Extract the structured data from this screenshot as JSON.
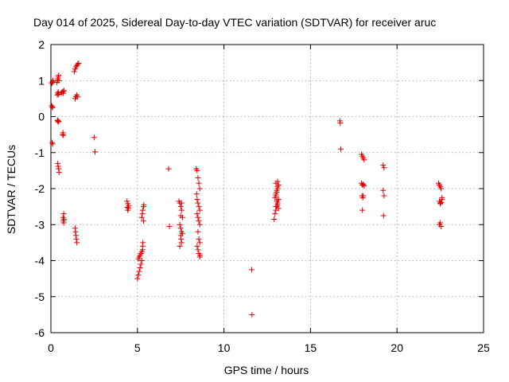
{
  "chart_data": {
    "type": "scatter",
    "title": "Day 014 of 2025, Sidereal Day-to-day VTEC variation (SDTVAR) for receiver aruc",
    "xlabel": "GPS time / hours",
    "ylabel": "SDTVAR / TECUs",
    "xlim": [
      0,
      25
    ],
    "ylim": [
      -6,
      2
    ],
    "xticks": [
      "0",
      "5",
      "10",
      "15",
      "20",
      "25"
    ],
    "yticks": [
      "-6",
      "-5",
      "-4",
      "-3",
      "-2",
      "-1",
      "0",
      "1",
      "2"
    ],
    "grid": true,
    "marker": "+",
    "color": "#e00000",
    "series": [
      {
        "name": "SDTVAR",
        "x": [
          0.05,
          0.08,
          0.1,
          0.12,
          0.05,
          0.08,
          0.1,
          0.07,
          0.1,
          0.35,
          0.38,
          0.4,
          0.42,
          0.45,
          0.47,
          0.37,
          0.4,
          0.43,
          0.45,
          0.38,
          0.4,
          0.42,
          0.45,
          0.4,
          0.42,
          0.45,
          0.47,
          0.6,
          0.65,
          0.7,
          0.75,
          0.72,
          0.68,
          0.7,
          0.72,
          0.74,
          0.7,
          0.72,
          0.74,
          0.76,
          1.35,
          1.4,
          1.45,
          1.5,
          1.55,
          1.6,
          1.4,
          1.45,
          1.5,
          1.55,
          1.4,
          1.42,
          1.45,
          1.47,
          1.5,
          2.5,
          2.55,
          4.4,
          4.45,
          4.5,
          4.42,
          4.48,
          4.44,
          5.0,
          5.05,
          5.1,
          5.15,
          5.2,
          5.25,
          5.05,
          5.1,
          5.15,
          5.2,
          5.25,
          5.3,
          5.3,
          5.32,
          5.35,
          5.25,
          5.28,
          5.3,
          5.35,
          5.37,
          6.8,
          6.85,
          7.4,
          7.45,
          7.5,
          7.55,
          7.6,
          7.45,
          7.5,
          7.55,
          7.6,
          7.5,
          7.52,
          7.55,
          7.45,
          7.5,
          7.55,
          8.4,
          8.45,
          8.5,
          8.55,
          8.6,
          8.42,
          8.45,
          8.5,
          8.55,
          8.6,
          8.45,
          8.5,
          8.55,
          8.6,
          8.5,
          8.55,
          8.6,
          8.45,
          8.5,
          8.55,
          8.6,
          8.62,
          11.6,
          11.62,
          12.9,
          12.95,
          13.0,
          13.05,
          13.1,
          13.15,
          13.0,
          13.05,
          13.1,
          13.15,
          13.0,
          13.05,
          13.1,
          13.15,
          12.95,
          13.0,
          13.05,
          13.1,
          13.15,
          13.0,
          13.1,
          16.7,
          16.72,
          16.75,
          17.95,
          18.0,
          18.05,
          18.1,
          17.95,
          18.0,
          18.05,
          18.1,
          17.98,
          18.02,
          18.05,
          18.0,
          19.2,
          19.25,
          19.2,
          19.25,
          19.22,
          22.4,
          22.45,
          22.5,
          22.55,
          22.6,
          22.45,
          22.5,
          22.55,
          22.6,
          22.5,
          22.55,
          22.45,
          22.5
        ],
        "y": [
          0.92,
          0.95,
          0.97,
          1.0,
          0.3,
          0.27,
          0.25,
          -0.72,
          -0.76,
          0.95,
          1.0,
          1.05,
          1.1,
          1.15,
          1.0,
          0.6,
          0.65,
          0.68,
          0.62,
          -0.1,
          -0.12,
          -0.15,
          -0.13,
          -1.3,
          -1.38,
          -1.45,
          -1.55,
          0.65,
          0.68,
          0.7,
          0.72,
          0.65,
          -0.5,
          -0.45,
          -0.52,
          -2.7,
          -2.8,
          -2.9,
          -2.95,
          -2.85,
          1.25,
          1.32,
          1.38,
          1.42,
          1.45,
          1.48,
          0.5,
          0.55,
          0.6,
          0.55,
          -3.1,
          -3.2,
          -3.3,
          -3.4,
          -3.5,
          -0.58,
          -0.98,
          -2.35,
          -2.42,
          -2.48,
          -2.52,
          -2.55,
          -2.6,
          -4.5,
          -4.4,
          -4.3,
          -4.2,
          -4.1,
          -4.0,
          -3.95,
          -3.9,
          -3.85,
          -3.8,
          -3.75,
          -3.7,
          -3.6,
          -3.5,
          -2.9,
          -2.8,
          -2.7,
          -2.6,
          -2.5,
          -2.45,
          -1.45,
          -3.05,
          -2.35,
          -2.4,
          -2.5,
          -2.6,
          -2.8,
          -3.0,
          -3.1,
          -3.2,
          -3.25,
          -3.3,
          -3.4,
          -3.5,
          -3.6,
          -2.75,
          -2.4,
          -1.45,
          -1.5,
          -1.7,
          -1.85,
          -2.0,
          -2.15,
          -2.3,
          -2.4,
          -2.5,
          -2.6,
          -2.7,
          -2.8,
          -2.9,
          -3.0,
          -3.2,
          -3.4,
          -3.5,
          -3.6,
          -3.7,
          -3.8,
          -3.9,
          -3.85,
          -4.25,
          -5.5,
          -2.85,
          -2.7,
          -2.6,
          -2.5,
          -2.4,
          -2.3,
          -2.2,
          -2.1,
          -2.0,
          -1.9,
          -1.85,
          -2.35,
          -2.45,
          -2.55,
          -2.25,
          -2.15,
          -2.05,
          -1.95,
          -2.3,
          -2.5,
          -1.8,
          -0.12,
          -0.18,
          -0.9,
          -1.05,
          -1.1,
          -1.15,
          -1.2,
          -1.85,
          -1.9,
          -1.88,
          -1.92,
          -2.2,
          -2.25,
          -2.2,
          -2.6,
          -1.35,
          -1.42,
          -2.05,
          -2.2,
          -2.75,
          -1.85,
          -1.9,
          -1.95,
          -2.0,
          -2.3,
          -2.35,
          -2.4,
          -2.38,
          -2.25,
          -2.95,
          -3.05,
          -3.0,
          -2.42
        ]
      }
    ]
  }
}
